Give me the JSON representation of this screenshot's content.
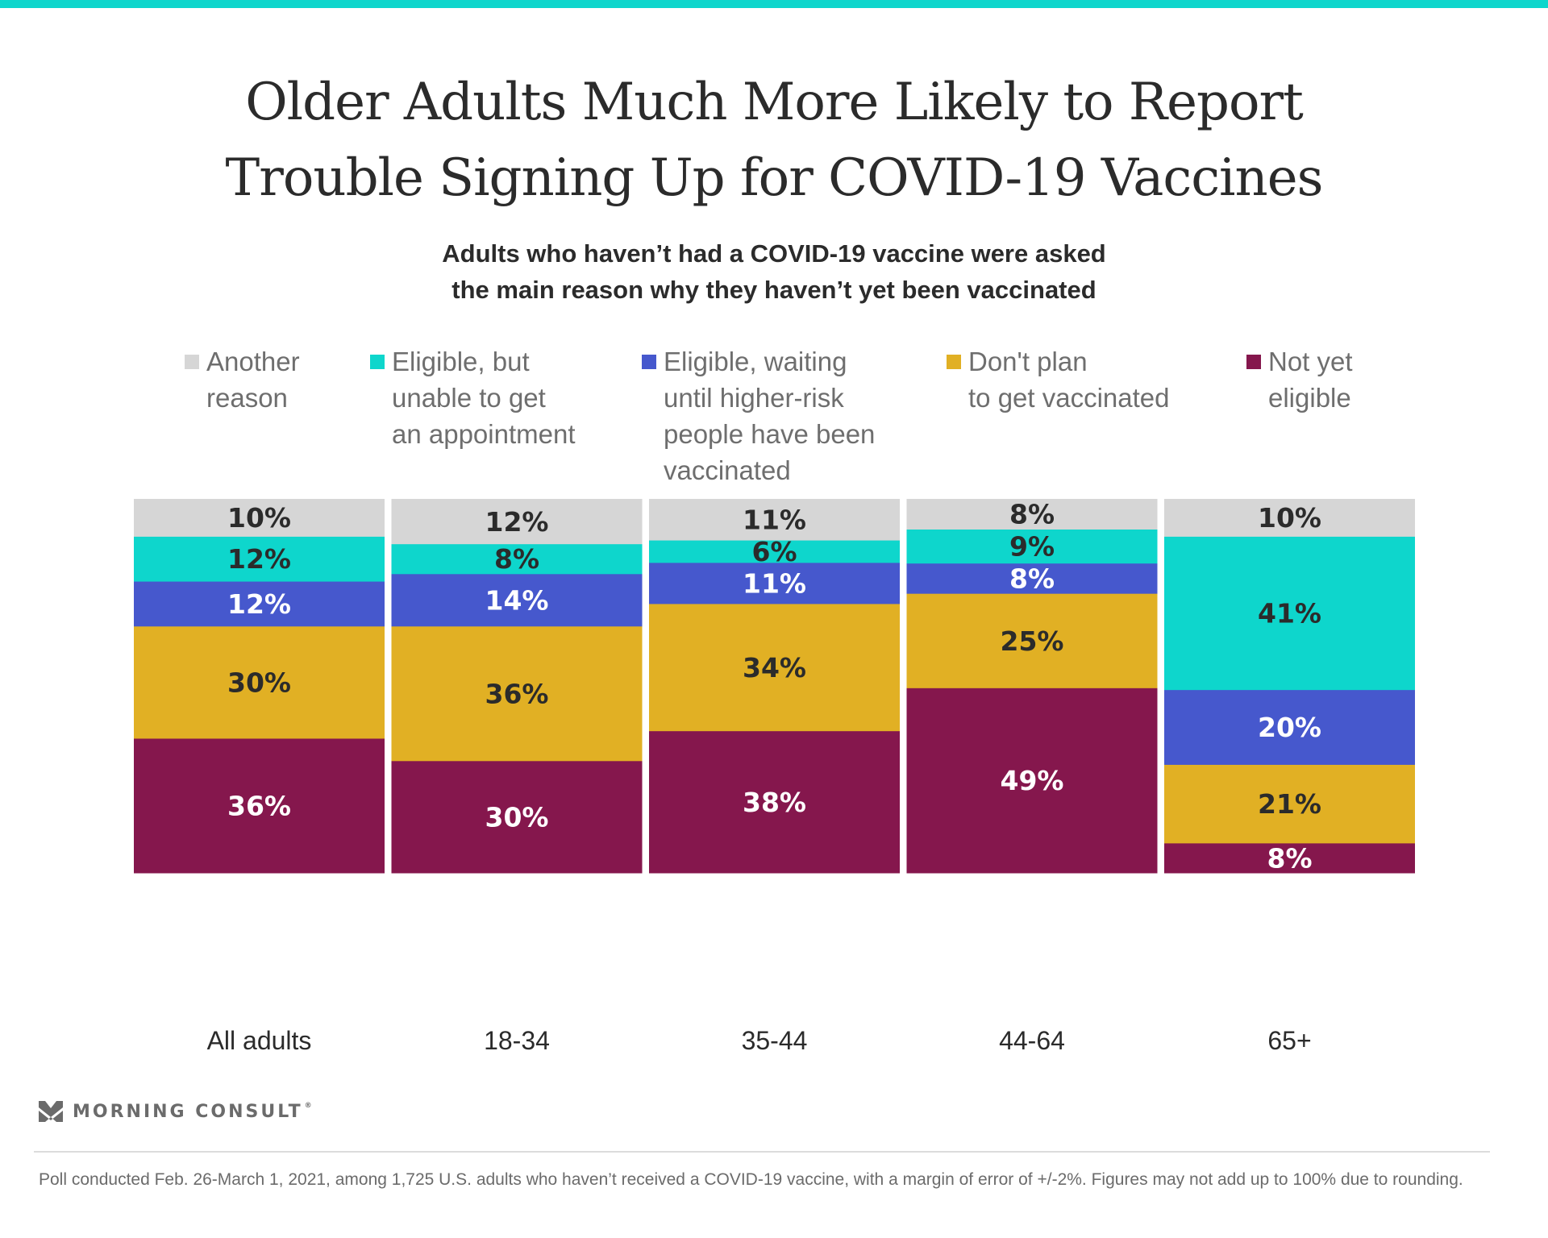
{
  "header": {
    "title_line1": "Older Adults Much More Likely to Report",
    "title_line2": "Trouble Signing Up for COVID-19 Vaccines",
    "subtitle_line1": "Adults who haven’t had a COVID-19 vaccine were asked",
    "subtitle_line2": "the main reason why they haven’t yet been vaccinated"
  },
  "legend": [
    {
      "label": "Another\nreason",
      "color": "#d6d6d6"
    },
    {
      "label": "Eligible, but\nunable to get\nan appointment",
      "color": "#0ed6cc"
    },
    {
      "label": "Eligible, waiting\nuntil higher-risk\npeople have been\nvaccinated",
      "color": "#4658cd"
    },
    {
      "label": "Don't plan\nto get vaccinated",
      "color": "#e1b024"
    },
    {
      "label": "Not yet\neligible",
      "color": "#85174d"
    }
  ],
  "chart_data": {
    "type": "bar",
    "stacked": true,
    "title": "Older Adults Much More Likely to Report Trouble Signing Up for COVID-19 Vaccines",
    "subtitle": "Adults who haven’t had a COVID-19 vaccine were asked the main reason why they haven’t yet been vaccinated",
    "xlabel": "",
    "ylabel": "",
    "ylim": [
      0,
      100
    ],
    "grid": false,
    "legend_position": "top",
    "categories": [
      "All adults",
      "18-34",
      "35-44",
      "44-64",
      "65+"
    ],
    "series": [
      {
        "name": "Not yet eligible",
        "color": "#85174d",
        "label_color": "#ffffff",
        "values": [
          36,
          30,
          38,
          49,
          8
        ]
      },
      {
        "name": "Don't plan to get vaccinated",
        "color": "#e1b024",
        "label_color": "#2b2b2b",
        "values": [
          30,
          36,
          34,
          25,
          21
        ]
      },
      {
        "name": "Eligible, waiting until higher-risk people have been vaccinated",
        "color": "#4658cd",
        "label_color": "#ffffff",
        "values": [
          12,
          14,
          11,
          8,
          20
        ]
      },
      {
        "name": "Eligible, but unable to get an appointment",
        "color": "#0ed6cc",
        "label_color": "#2b2b2b",
        "values": [
          12,
          8,
          6,
          9,
          41
        ]
      },
      {
        "name": "Another reason",
        "color": "#d6d6d6",
        "label_color": "#2b2b2b",
        "values": [
          10,
          12,
          11,
          8,
          10
        ]
      }
    ],
    "value_suffix": "%"
  },
  "footer": {
    "brand": "MORNING CONSULT",
    "brand_mark": "®",
    "note": "Poll conducted Feb. 26-March 1, 2021, among 1,725 U.S. adults who haven’t received a COVID-19 vaccine, with a margin of error of +/-2%. Figures may not add up to 100% due to rounding."
  },
  "colors": {
    "accent_bar": "#0ed6cc",
    "text": "#2b2b2b",
    "muted": "#6e6e6e"
  }
}
